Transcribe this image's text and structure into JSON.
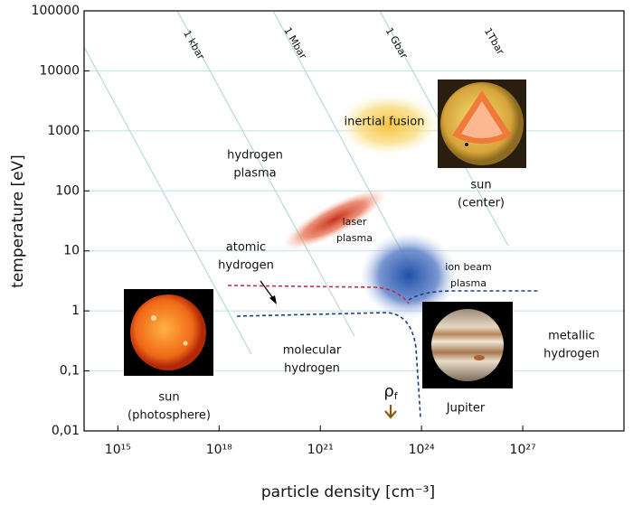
{
  "chart_data": {
    "type": "line",
    "xlabel": "particle density [cm⁻³]",
    "ylabel": "temperature [eV]",
    "xlog": true,
    "ylog": true,
    "xlim": [
      100000000000000.0,
      1e+30
    ],
    "ylim": [
      0.01,
      100000
    ],
    "xticks": [
      {
        "value": 1000000000000000.0,
        "label": "10¹⁵"
      },
      {
        "value": 1e+18,
        "label": "10¹⁸"
      },
      {
        "value": 1e+21,
        "label": "10²¹"
      },
      {
        "value": 1e+24,
        "label": "10²⁴"
      },
      {
        "value": 1e+27,
        "label": "10²⁷"
      }
    ],
    "yticks": [
      {
        "value": 0.01,
        "label": "0,01"
      },
      {
        "value": 0.1,
        "label": "0,1"
      },
      1,
      10,
      100,
      1000,
      10000,
      100000
    ],
    "grid": "y",
    "grid_color": "#bfe2e2",
    "isobars": [
      "1 kbar",
      "1 Mbar",
      "1 Gbar",
      "1Tbar"
    ],
    "annotations": [
      {
        "lines": [
          "inertial fusion"
        ]
      },
      {
        "lines": [
          "hydrogen",
          "plasma"
        ]
      },
      {
        "lines": [
          "sun",
          "(center)"
        ]
      },
      {
        "lines": [
          "laser",
          "plasma"
        ]
      },
      {
        "lines": [
          "atomic",
          "hydrogen"
        ]
      },
      {
        "lines": [
          "ion beam",
          "plasma"
        ]
      },
      {
        "lines": [
          "molecular",
          "hydrogen"
        ]
      },
      {
        "lines": [
          "metallic",
          "hydrogen"
        ]
      },
      {
        "lines": [
          "sun",
          "(photosphere)"
        ]
      },
      {
        "lines": [
          "Jupiter"
        ]
      }
    ],
    "density_marker": {
      "text": "ρ",
      "sub": "f"
    }
  }
}
